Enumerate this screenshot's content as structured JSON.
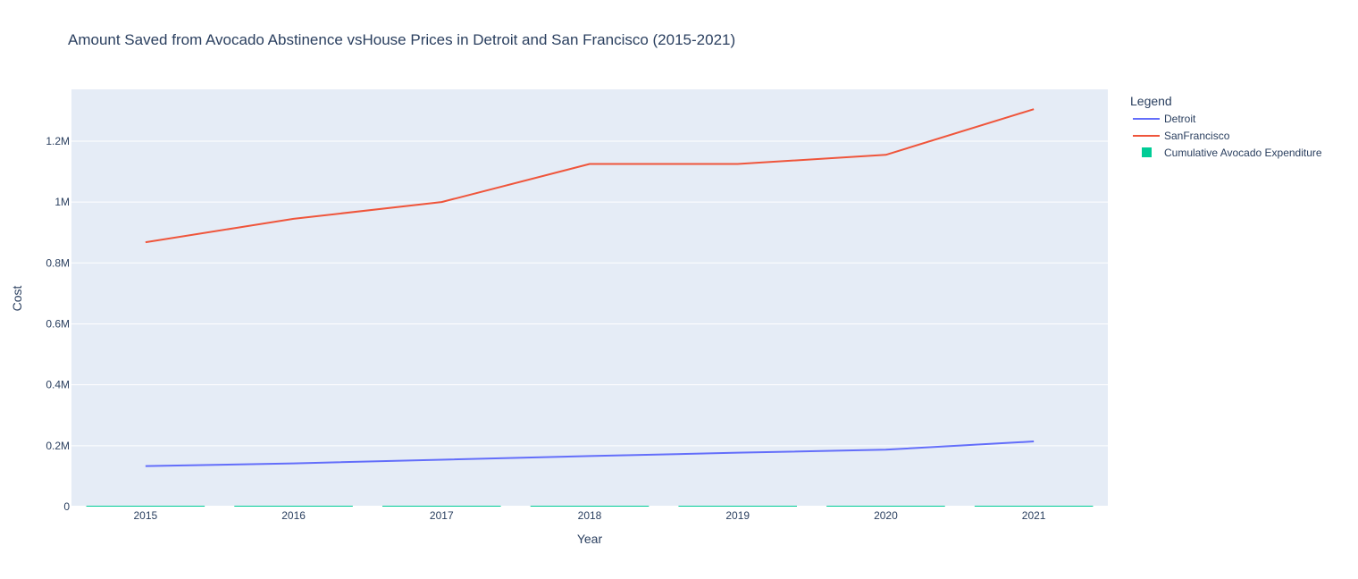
{
  "chart_data": {
    "type": "line",
    "title": "Amount Saved from Avocado Abstinence vsHouse Prices in Detroit and San Francisco (2015-2021)",
    "xlabel": "Year",
    "ylabel": "Cost",
    "categories": [
      "2015",
      "2016",
      "2017",
      "2018",
      "2019",
      "2020",
      "2021"
    ],
    "ylim": [
      0,
      1370000
    ],
    "yticks": [
      0,
      200000,
      400000,
      600000,
      800000,
      1000000,
      1200000
    ],
    "ytick_labels": [
      "0",
      "0.2M",
      "0.4M",
      "0.6M",
      "0.8M",
      "1M",
      "1.2M"
    ],
    "grid": true,
    "legend_title": "Legend",
    "legend_position": "right",
    "series": [
      {
        "name": "Detroit",
        "kind": "line",
        "color": "#636efa",
        "values": [
          133000,
          142000,
          154000,
          166000,
          177000,
          187000,
          214000
        ]
      },
      {
        "name": "SanFrancisco",
        "kind": "line",
        "color": "#ef553b",
        "values": [
          868000,
          945000,
          1000000,
          1125000,
          1125000,
          1155000,
          1305000
        ]
      },
      {
        "name": "Cumulative Avocado Expenditure",
        "kind": "bar",
        "color": "#00cc96",
        "values": [
          400,
          800,
          1200,
          1600,
          2000,
          2400,
          2800
        ]
      }
    ]
  }
}
